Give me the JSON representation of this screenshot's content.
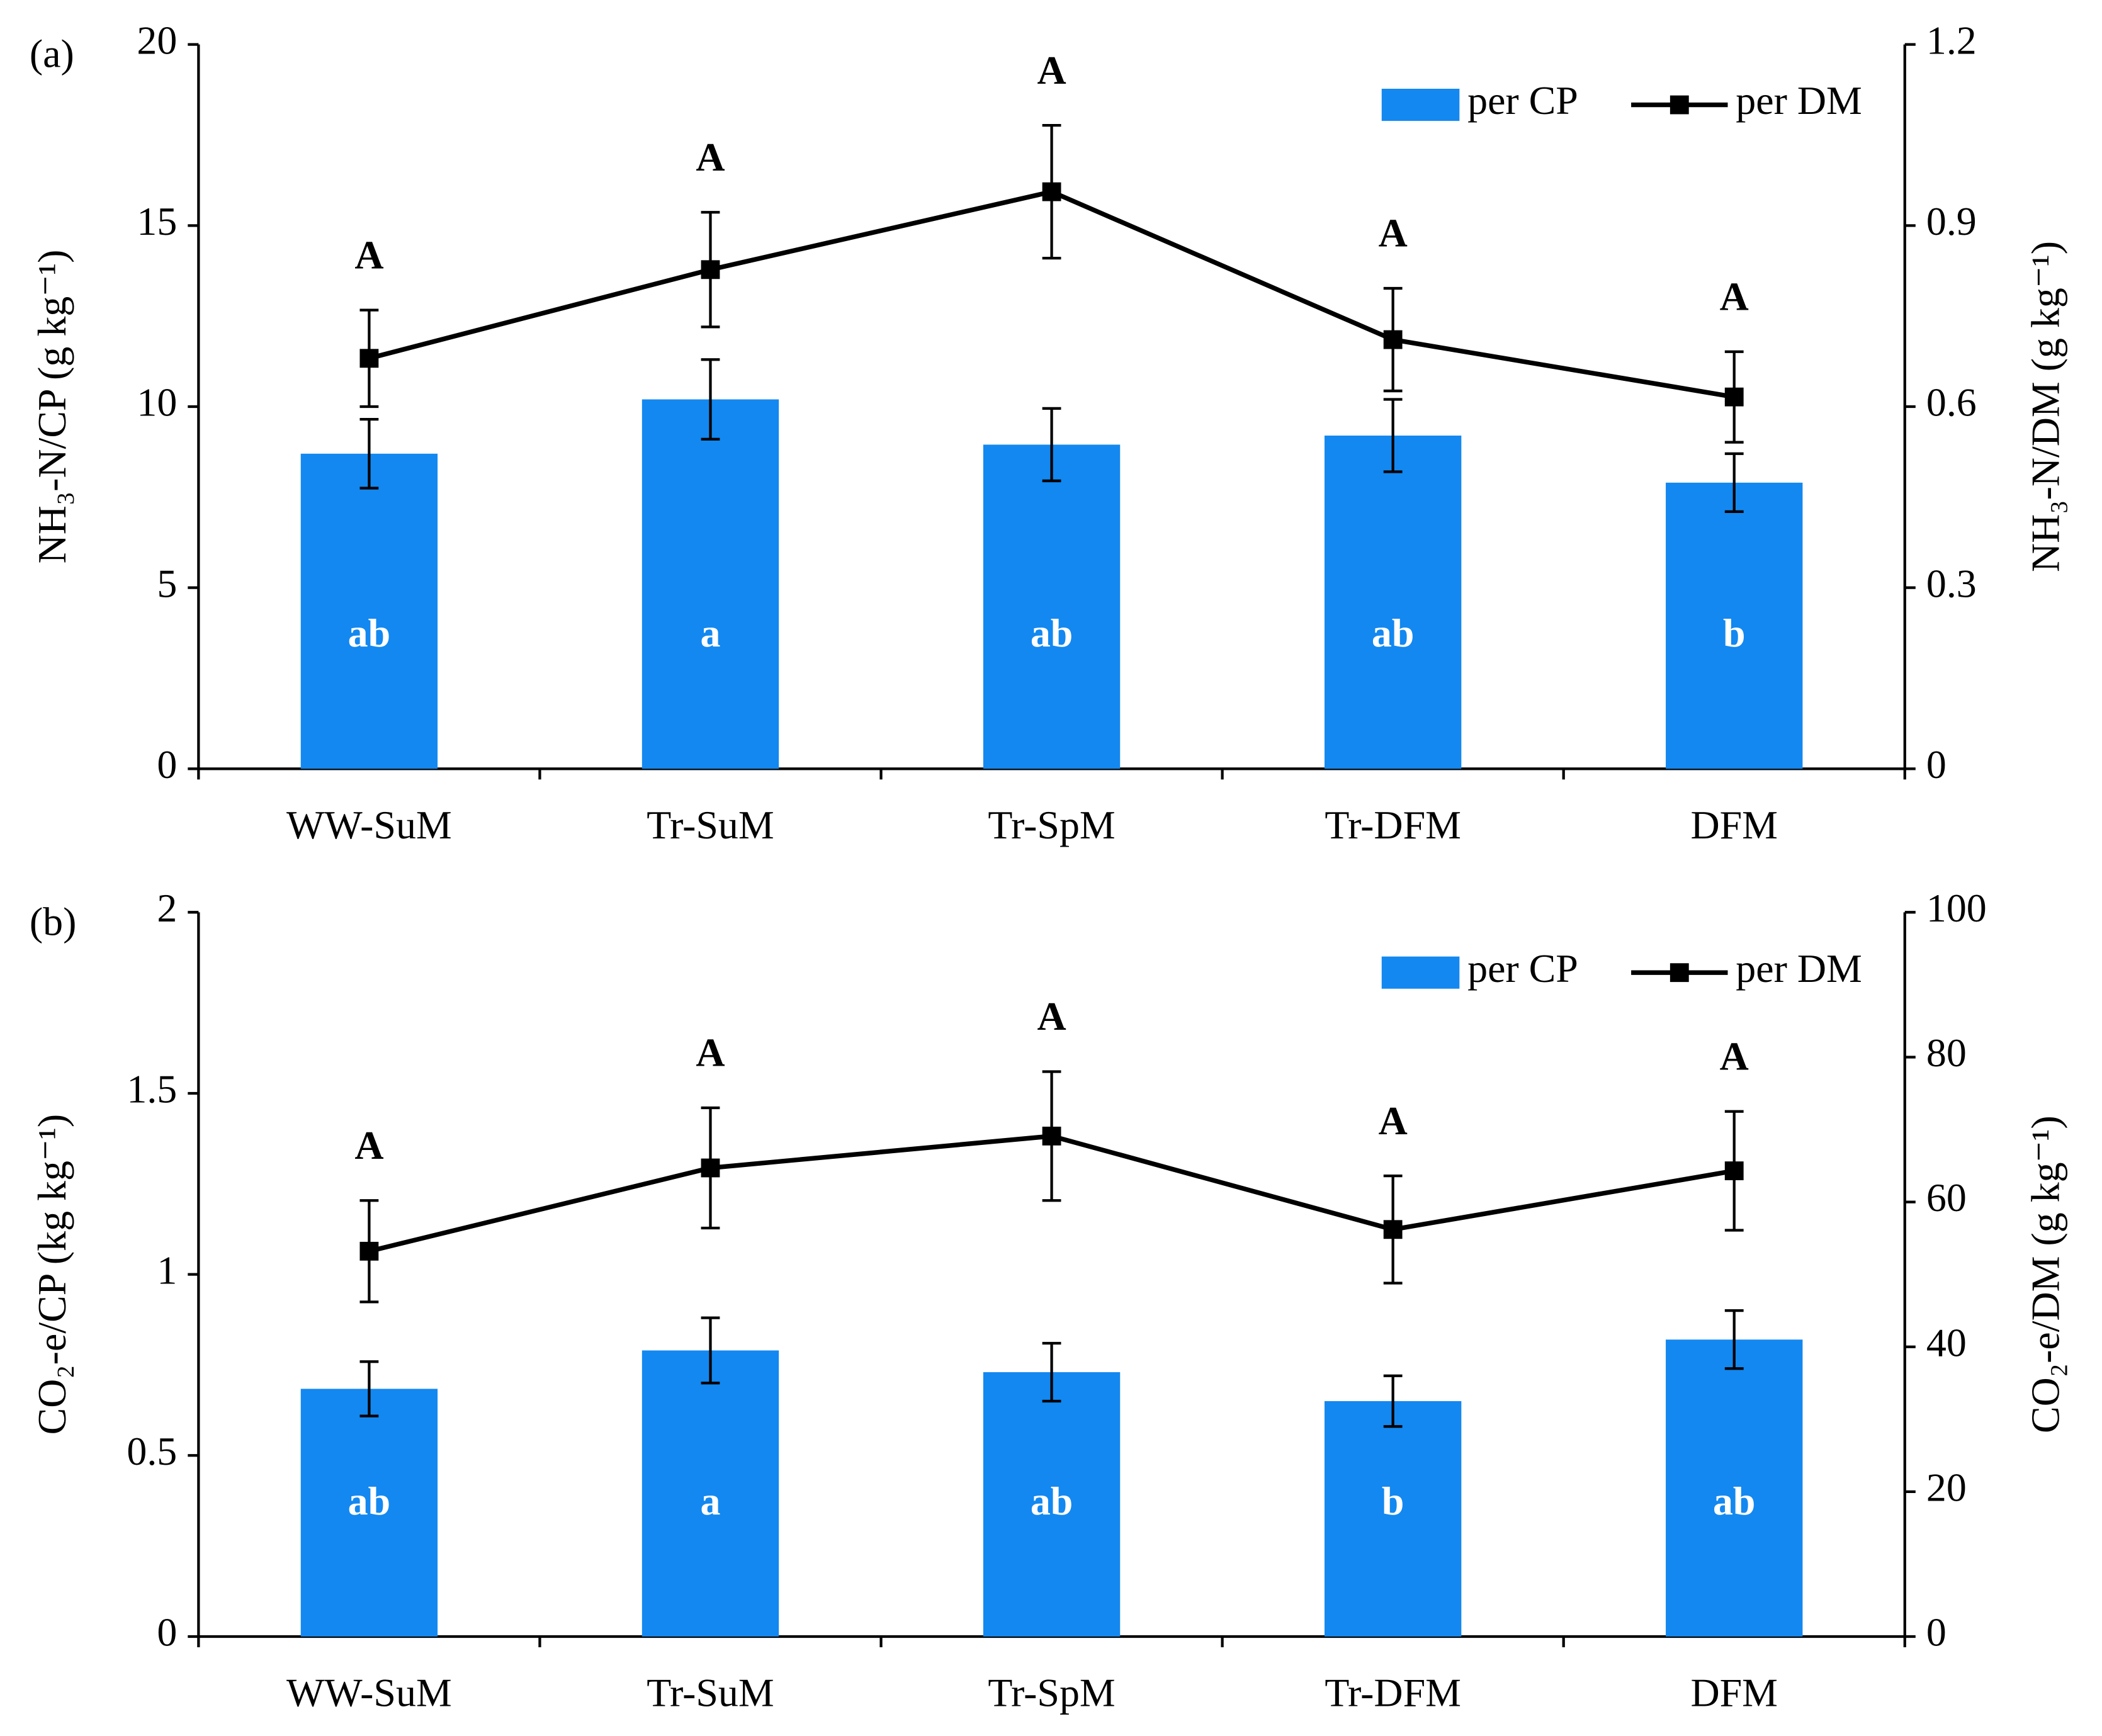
{
  "chart_data": [
    {
      "type": "combo",
      "panel_label": "(a)",
      "categories": [
        "WW-SuM",
        "Tr-SuM",
        "Tr-SpM",
        "Tr-DFM",
        "DFM"
      ],
      "y_label": "NH₃-N/CP (g kg⁻¹)",
      "y2_label": "NH₃-N/DM (g kg⁻¹)",
      "ylim": [
        0,
        20
      ],
      "yticks": [
        0,
        5,
        10,
        15,
        20
      ],
      "y2lim": [
        0,
        1.2
      ],
      "y2ticks": [
        0,
        0.3,
        0.6,
        0.9,
        1.2
      ],
      "legend": "top-right",
      "series": [
        {
          "name": "per CP",
          "color": "#1388f0",
          "values": [
            8.7,
            10.2,
            8.95,
            9.2,
            7.9
          ],
          "errors": [
            0.95,
            1.1,
            1.0,
            1.0,
            0.8
          ],
          "labels": [
            "ab",
            "a",
            "ab",
            "ab",
            "b"
          ]
        },
        {
          "name": "per DM",
          "color": "#000000",
          "axis": "y2",
          "values": [
            0.68,
            0.827,
            0.956,
            0.711,
            0.616
          ],
          "errors": [
            0.08,
            0.095,
            0.11,
            0.085,
            0.075
          ],
          "labels": [
            "A",
            "A",
            "A",
            "A",
            "A"
          ]
        }
      ]
    },
    {
      "type": "combo",
      "panel_label": "(b)",
      "categories": [
        "WW-SuM",
        "Tr-SuM",
        "Tr-SpM",
        "Tr-DFM",
        "DFM"
      ],
      "y_label": "CO₂-e/CP (kg kg⁻¹)",
      "y2_label": "CO₂-e/DM (g kg⁻¹)",
      "ylim": [
        0,
        2
      ],
      "yticks": [
        0,
        0.5,
        1,
        1.5,
        2
      ],
      "y2lim": [
        0,
        100
      ],
      "y2ticks": [
        0,
        20,
        40,
        60,
        80,
        100
      ],
      "legend": "top-right",
      "series": [
        {
          "name": "per CP",
          "color": "#1388f0",
          "values": [
            0.684,
            0.79,
            0.73,
            0.65,
            0.82
          ],
          "errors": [
            0.075,
            0.09,
            0.08,
            0.07,
            0.08
          ],
          "labels": [
            "ab",
            "a",
            "ab",
            "b",
            "ab"
          ]
        },
        {
          "name": "per DM",
          "color": "#000000",
          "axis": "y2",
          "values": [
            53.2,
            64.7,
            69.1,
            56.2,
            64.3
          ],
          "errors": [
            7,
            8.3,
            8.9,
            7.4,
            8.2
          ],
          "labels": [
            "A",
            "A",
            "A",
            "A",
            "A"
          ]
        }
      ]
    }
  ]
}
